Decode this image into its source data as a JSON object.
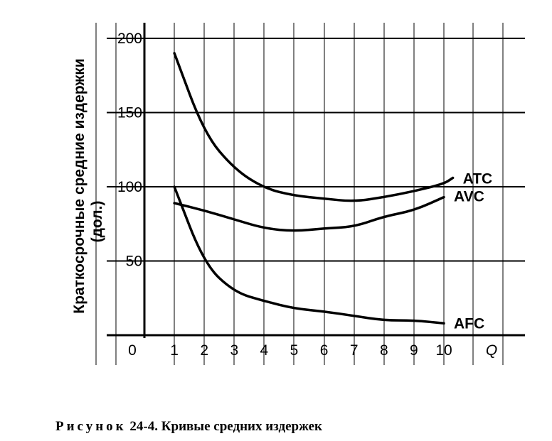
{
  "caption": {
    "figure_label": "Рисунок",
    "figure_number": "24-4.",
    "title": "Кривые средних издержек"
  },
  "chart_data": {
    "type": "line",
    "ylabel": "Краткосрочные средние издержки",
    "ylabel_unit": "(дол.)",
    "xlabel": "Q",
    "origin_label": "0",
    "xlim": [
      0,
      10
    ],
    "ylim": [
      0,
      200
    ],
    "x_ticks": [
      "1",
      "2",
      "3",
      "4",
      "5",
      "6",
      "7",
      "8",
      "9",
      "10"
    ],
    "y_ticks": [
      "50",
      "100",
      "150",
      "200"
    ],
    "grid": true,
    "series": [
      {
        "name": "ATC",
        "x": [
          1,
          2,
          3,
          4,
          5,
          6,
          7,
          8,
          9,
          10,
          10.3
        ],
        "y": [
          190,
          136,
          112,
          99,
          94,
          92,
          90,
          93,
          97,
          102,
          106
        ]
      },
      {
        "name": "AVC",
        "x": [
          1,
          2,
          3,
          4,
          5,
          6,
          7,
          8,
          9,
          10
        ],
        "y": [
          89,
          84,
          78,
          72,
          70,
          72,
          73,
          80,
          84,
          93
        ]
      },
      {
        "name": "AFC",
        "x": [
          1,
          2,
          3,
          4,
          5,
          6,
          7,
          8,
          9,
          10
        ],
        "y": [
          100,
          48,
          29,
          23,
          18,
          16,
          13,
          10,
          10,
          8
        ]
      }
    ]
  }
}
